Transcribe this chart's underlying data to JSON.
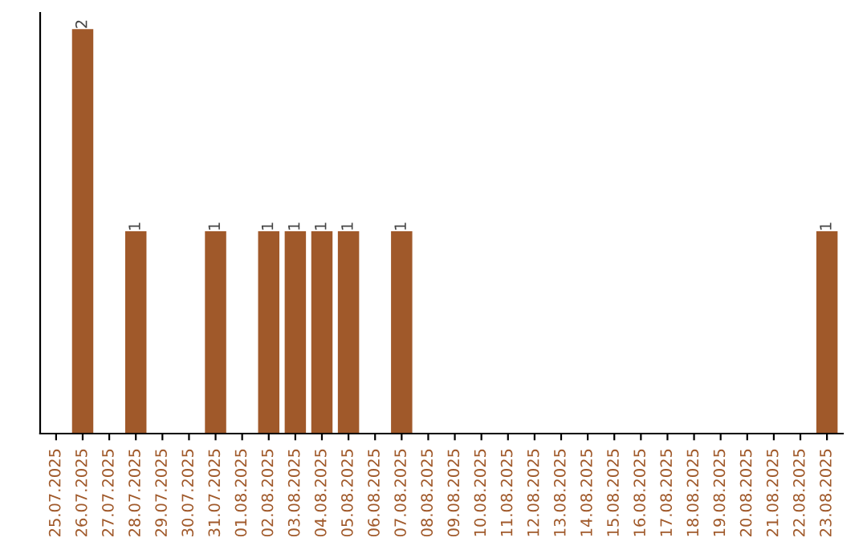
{
  "chart_data": {
    "type": "bar",
    "categories": [
      "25.07.2025",
      "26.07.2025",
      "27.07.2025",
      "28.07.2025",
      "29.07.2025",
      "30.07.2025",
      "31.07.2025",
      "01.08.2025",
      "02.08.2025",
      "03.08.2025",
      "04.08.2025",
      "05.08.2025",
      "06.08.2025",
      "07.08.2025",
      "08.08.2025",
      "09.08.2025",
      "10.08.2025",
      "11.08.2025",
      "12.08.2025",
      "13.08.2025",
      "14.08.2025",
      "15.08.2025",
      "16.08.2025",
      "17.08.2025",
      "18.08.2025",
      "19.08.2025",
      "20.08.2025",
      "21.08.2025",
      "22.08.2025",
      "23.08.2025"
    ],
    "values": [
      0,
      2,
      0,
      1,
      0,
      0,
      1,
      0,
      1,
      1,
      1,
      1,
      0,
      1,
      0,
      0,
      0,
      0,
      0,
      0,
      0,
      0,
      0,
      0,
      0,
      0,
      0,
      0,
      0,
      1
    ],
    "value_labels": [
      null,
      "2",
      null,
      "1",
      null,
      null,
      "1",
      null,
      "1",
      "1",
      "1",
      "1",
      null,
      "1",
      null,
      null,
      null,
      null,
      null,
      null,
      null,
      null,
      null,
      null,
      null,
      null,
      null,
      null,
      null,
      "1"
    ],
    "color": "#a0592a",
    "tick_labels": "x",
    "grid": false
  }
}
